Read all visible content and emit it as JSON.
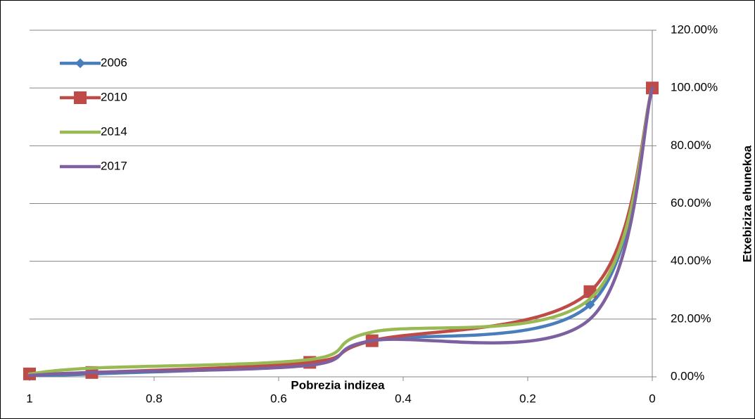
{
  "chart_data": {
    "type": "line",
    "x_label": "Pobrezia indizea",
    "y_label": "Etxebiziza ehunekoa",
    "xlim": [
      1,
      0
    ],
    "xticks": [
      1,
      0.8,
      0.6,
      0.4,
      0.2,
      0
    ],
    "ylim": [
      0,
      120
    ],
    "yticks": [
      {
        "value": 0,
        "label": "0.00%"
      },
      {
        "value": 20,
        "label": "20.00%"
      },
      {
        "value": 40,
        "label": "40.00%"
      },
      {
        "value": 60,
        "label": "60.00%"
      },
      {
        "value": 80,
        "label": "80.00%"
      },
      {
        "value": 100,
        "label": "100.00%"
      },
      {
        "value": 120,
        "label": "120.00%"
      }
    ],
    "grid": true,
    "smooth": true,
    "y_axis_side": "right",
    "legend": "top-left",
    "x": [
      1,
      0.9,
      0.55,
      0.45,
      0.1,
      0
    ],
    "series": [
      {
        "name": "2006",
        "color": "#4a7ebb",
        "marker": "diamond",
        "values": [
          0.5,
          1,
          4.5,
          12.5,
          25,
          100
        ]
      },
      {
        "name": "2010",
        "color": "#be4b48",
        "marker": "square",
        "values": [
          1,
          1.5,
          5,
          12.5,
          29.5,
          100
        ]
      },
      {
        "name": "2014",
        "color": "#98b954",
        "values": [
          1,
          3,
          6,
          15.5,
          27,
          100
        ]
      },
      {
        "name": "2017",
        "color": "#7d60a0",
        "values": [
          0.5,
          1.5,
          4,
          12.5,
          20,
          100
        ]
      }
    ]
  }
}
